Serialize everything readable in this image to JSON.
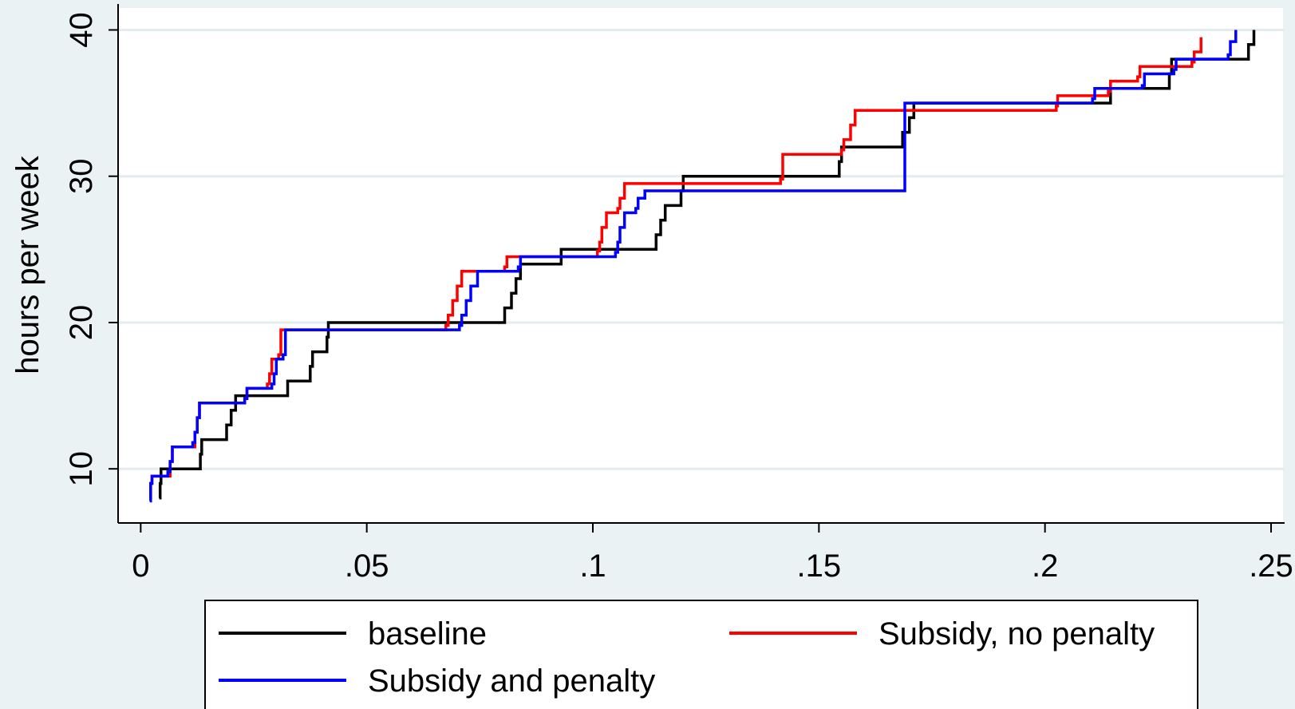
{
  "chart_data": {
    "type": "line",
    "step": true,
    "title": "",
    "xlabel": "",
    "ylabel": "hours per week",
    "xlim": [
      -0.005,
      0.253
    ],
    "ylim": [
      6.3,
      41.5
    ],
    "xticks": [
      {
        "value": 0,
        "label": "0"
      },
      {
        "value": 0.05,
        "label": ".05"
      },
      {
        "value": 0.1,
        "label": ".1"
      },
      {
        "value": 0.15,
        "label": ".15"
      },
      {
        "value": 0.2,
        "label": ".2"
      },
      {
        "value": 0.25,
        "label": ".25"
      }
    ],
    "yticks": [
      {
        "value": 10,
        "label": "10"
      },
      {
        "value": 20,
        "label": "20"
      },
      {
        "value": 30,
        "label": "30"
      },
      {
        "value": 40,
        "label": "40"
      }
    ],
    "grid": "horizontal",
    "legend_position": "bottom",
    "series": [
      {
        "name": "baseline",
        "color": "#000000",
        "points": [
          [
            0.0041,
            8
          ],
          [
            0.0043,
            9
          ],
          [
            0.0045,
            10
          ],
          [
            0.013,
            10
          ],
          [
            0.0132,
            11
          ],
          [
            0.0135,
            12
          ],
          [
            0.0188,
            12
          ],
          [
            0.019,
            13
          ],
          [
            0.02,
            14
          ],
          [
            0.021,
            15
          ],
          [
            0.032,
            15
          ],
          [
            0.0325,
            16
          ],
          [
            0.037,
            16
          ],
          [
            0.0375,
            17
          ],
          [
            0.038,
            18
          ],
          [
            0.0408,
            18
          ],
          [
            0.0412,
            19
          ],
          [
            0.0415,
            20
          ],
          [
            0.08,
            20
          ],
          [
            0.0805,
            21
          ],
          [
            0.082,
            22
          ],
          [
            0.083,
            23
          ],
          [
            0.084,
            24
          ],
          [
            0.0925,
            24
          ],
          [
            0.093,
            25
          ],
          [
            0.1135,
            25
          ],
          [
            0.114,
            26
          ],
          [
            0.115,
            27
          ],
          [
            0.116,
            28
          ],
          [
            0.119,
            28
          ],
          [
            0.1195,
            29
          ],
          [
            0.12,
            30
          ],
          [
            0.154,
            30
          ],
          [
            0.1545,
            31
          ],
          [
            0.155,
            32
          ],
          [
            0.168,
            32
          ],
          [
            0.1685,
            33
          ],
          [
            0.17,
            34
          ],
          [
            0.171,
            35
          ],
          [
            0.214,
            35
          ],
          [
            0.2145,
            36
          ],
          [
            0.227,
            36
          ],
          [
            0.2275,
            37
          ],
          [
            0.228,
            38
          ],
          [
            0.2445,
            38
          ],
          [
            0.245,
            39
          ],
          [
            0.2462,
            40
          ]
        ]
      },
      {
        "name": "Subsidy, no penalty",
        "color": "#ff0000",
        "points": [
          [
            0.002,
            8
          ],
          [
            0.0022,
            9
          ],
          [
            0.0025,
            9.5
          ],
          [
            0.006,
            9.5
          ],
          [
            0.0065,
            10.5
          ],
          [
            0.007,
            11.5
          ],
          [
            0.0115,
            11.5
          ],
          [
            0.012,
            12.5
          ],
          [
            0.0125,
            13.5
          ],
          [
            0.013,
            14.5
          ],
          [
            0.023,
            14.8
          ],
          [
            0.0235,
            15.5
          ],
          [
            0.028,
            15.8
          ],
          [
            0.0285,
            16.5
          ],
          [
            0.029,
            17.5
          ],
          [
            0.0305,
            17.8
          ],
          [
            0.031,
            19.5
          ],
          [
            0.0675,
            19.8
          ],
          [
            0.068,
            20.5
          ],
          [
            0.069,
            21.5
          ],
          [
            0.07,
            22.5
          ],
          [
            0.071,
            23.5
          ],
          [
            0.0805,
            23.8
          ],
          [
            0.081,
            24.5
          ],
          [
            0.101,
            24.9
          ],
          [
            0.1015,
            25.5
          ],
          [
            0.102,
            26.5
          ],
          [
            0.103,
            27.5
          ],
          [
            0.1055,
            27.8
          ],
          [
            0.106,
            28.5
          ],
          [
            0.107,
            29.5
          ],
          [
            0.1415,
            29.8
          ],
          [
            0.142,
            31.5
          ],
          [
            0.155,
            31.8
          ],
          [
            0.1555,
            32.5
          ],
          [
            0.157,
            33.5
          ],
          [
            0.158,
            34.5
          ],
          [
            0.2025,
            34.8
          ],
          [
            0.2028,
            35.5
          ],
          [
            0.214,
            35.8
          ],
          [
            0.2145,
            36.5
          ],
          [
            0.2205,
            36.8
          ],
          [
            0.221,
            37.5
          ],
          [
            0.2325,
            37.8
          ],
          [
            0.233,
            38.5
          ],
          [
            0.2345,
            39.5
          ]
        ]
      },
      {
        "name": "Subsidy and penalty",
        "color": "#0000ff",
        "points": [
          [
            0.002,
            7.8
          ],
          [
            0.0022,
            9
          ],
          [
            0.0025,
            9.5
          ],
          [
            0.006,
            9.8
          ],
          [
            0.0065,
            10.5
          ],
          [
            0.007,
            11.5
          ],
          [
            0.0115,
            11.8
          ],
          [
            0.012,
            12.5
          ],
          [
            0.0125,
            13.5
          ],
          [
            0.013,
            14.5
          ],
          [
            0.023,
            14.8
          ],
          [
            0.0235,
            15.5
          ],
          [
            0.029,
            15.8
          ],
          [
            0.0295,
            16.5
          ],
          [
            0.03,
            17.5
          ],
          [
            0.0315,
            17.8
          ],
          [
            0.032,
            19.5
          ],
          [
            0.0705,
            19.8
          ],
          [
            0.071,
            20.5
          ],
          [
            0.072,
            21.5
          ],
          [
            0.073,
            22.5
          ],
          [
            0.0745,
            23.5
          ],
          [
            0.0835,
            23.8
          ],
          [
            0.084,
            24.5
          ],
          [
            0.105,
            24.8
          ],
          [
            0.1055,
            25.5
          ],
          [
            0.106,
            26.5
          ],
          [
            0.107,
            27.5
          ],
          [
            0.1095,
            27.8
          ],
          [
            0.11,
            28.5
          ],
          [
            0.1115,
            29
          ],
          [
            0.1685,
            29
          ],
          [
            0.169,
            35
          ],
          [
            0.2105,
            35.3
          ],
          [
            0.211,
            36
          ],
          [
            0.2215,
            36.2
          ],
          [
            0.222,
            37
          ],
          [
            0.2285,
            37.3
          ],
          [
            0.229,
            38
          ],
          [
            0.2405,
            38.3
          ],
          [
            0.241,
            39.2
          ],
          [
            0.2422,
            40
          ]
        ]
      }
    ]
  }
}
